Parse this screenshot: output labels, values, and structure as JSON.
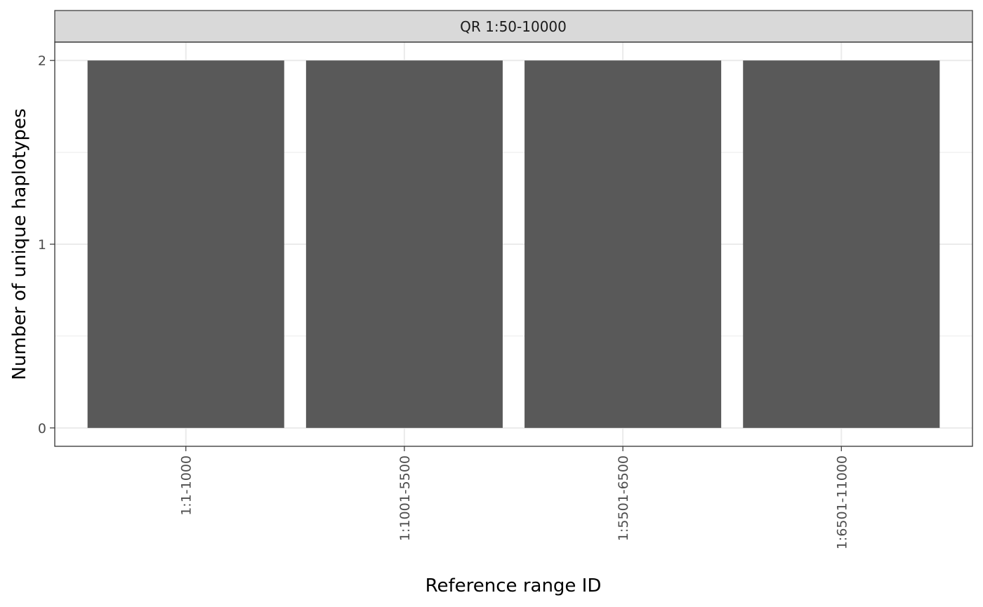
{
  "chart_data": {
    "type": "bar",
    "facet_label": "QR 1:50-10000",
    "categories": [
      "1:1-1000",
      "1:1001-5500",
      "1:5501-6500",
      "1:6501-11000"
    ],
    "values": [
      2,
      2,
      2,
      2
    ],
    "xlabel": "Reference range ID",
    "ylabel": "Number of unique haplotypes",
    "ylim": [
      -0.1,
      2.1
    ],
    "yticks": [
      0,
      1,
      2
    ],
    "grid": true,
    "colors": {
      "bar": "#595959",
      "panel_border": "#333333",
      "strip_fill": "#d9d9d9",
      "grid": "#ebebeb",
      "tick": "#333333"
    }
  }
}
